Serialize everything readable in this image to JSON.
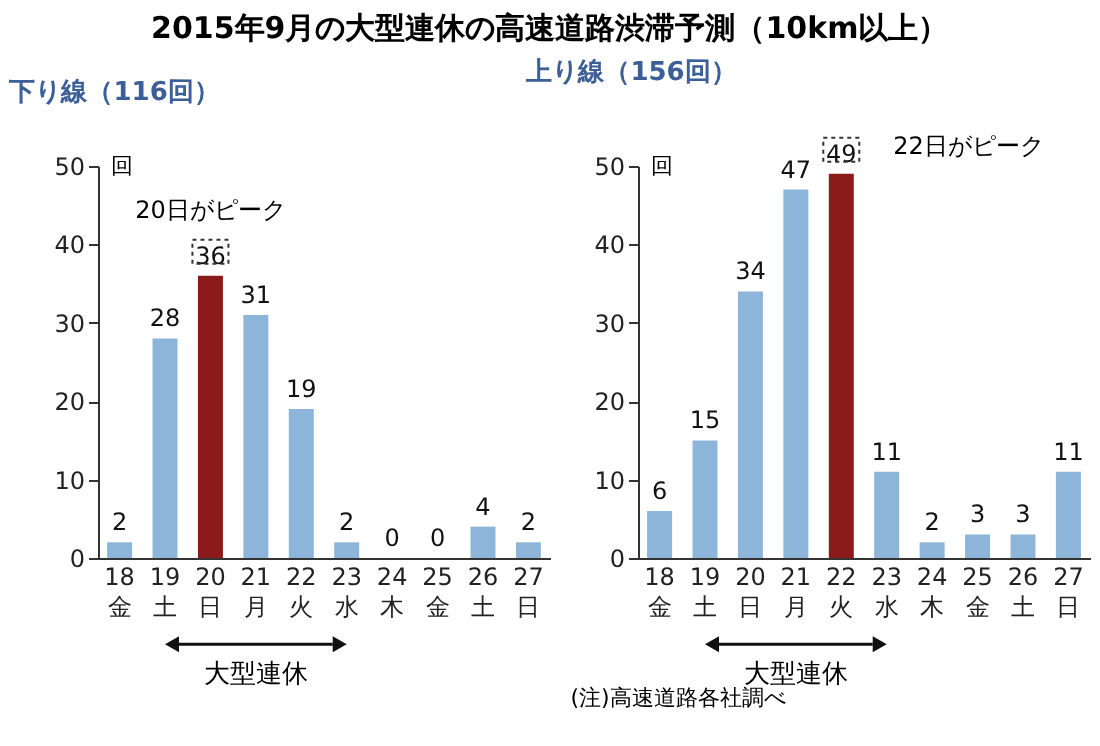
{
  "chart_data": [
    {
      "type": "bar",
      "title": "2015年9月の大型連休の高速道路渋滞予測（10km以上）",
      "subtitle": "下り線（116回）",
      "ylabel": "回",
      "categories": [
        "18\n金",
        "19\n土",
        "20\n日",
        "21\n月",
        "22\n火",
        "23\n水",
        "24\n木",
        "25\n金",
        "26\n土",
        "27\n日"
      ],
      "values": [
        2,
        28,
        36,
        31,
        19,
        2,
        0,
        0,
        4,
        2
      ],
      "colors": [
        "#8db5da",
        "#8db5da",
        "#8b1a1a",
        "#8db5da",
        "#8db5da",
        "#8db5da",
        "#8db5da",
        "#8db5da",
        "#8db5da",
        "#8db5da"
      ],
      "ylim": [
        0,
        50
      ],
      "yticks": [
        0,
        10,
        20,
        30,
        40,
        50
      ],
      "data_labels": true,
      "annotations": [
        "20日がピーク",
        "大型連休"
      ]
    },
    {
      "type": "bar",
      "subtitle": "上り線（156回）",
      "ylabel": "回",
      "categories": [
        "18\n金",
        "19\n土",
        "20\n日",
        "21\n月",
        "22\n火",
        "23\n水",
        "24\n木",
        "25\n金",
        "26\n土",
        "27\n日"
      ],
      "values": [
        6,
        15,
        34,
        47,
        49,
        11,
        2,
        3,
        3,
        11
      ],
      "colors": [
        "#8db5da",
        "#8db5da",
        "#8db5da",
        "#8db5da",
        "#8b1a1a",
        "#8db5da",
        "#8db5da",
        "#8db5da",
        "#8db5da",
        "#8db5da"
      ],
      "ylim": [
        0,
        50
      ],
      "yticks": [
        0,
        10,
        20,
        30,
        40,
        50
      ],
      "data_labels": true,
      "annotations": [
        "22日がピーク",
        "大型連休",
        "(注)高速道路各社調べ"
      ]
    }
  ]
}
